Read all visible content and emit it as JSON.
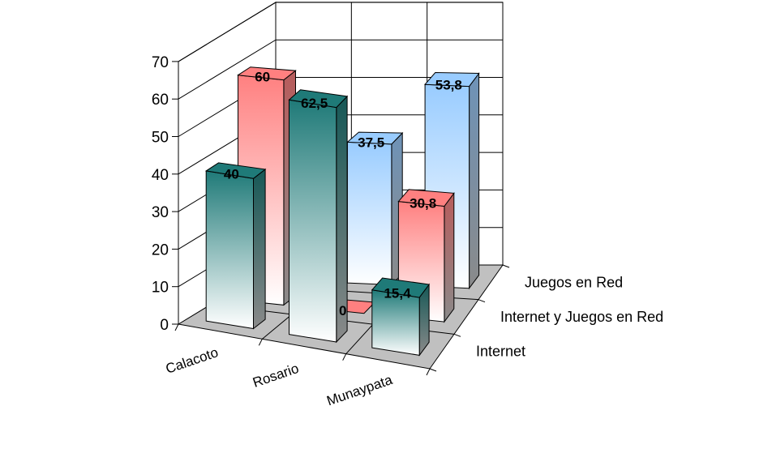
{
  "chart_data": {
    "type": "bar",
    "title": "",
    "xlabel": "",
    "ylabel": "",
    "ylim": [
      0,
      70
    ],
    "yticks": [
      0,
      10,
      20,
      30,
      40,
      50,
      60,
      70
    ],
    "categories": [
      "Calacoto",
      "Rosario",
      "Munaypata"
    ],
    "series": [
      {
        "name": "Internet",
        "values": [
          40,
          62.5,
          15.4
        ],
        "data_labels": [
          "40",
          "62,5",
          "15,4"
        ],
        "color": "#1f7a78"
      },
      {
        "name": "Internet y Juegos en Red",
        "values": [
          60,
          0,
          30.8
        ],
        "data_labels": [
          "60",
          "0",
          "30,8"
        ],
        "color": "#ff8080"
      },
      {
        "name": "Juegos en Red",
        "values": [
          null,
          37.5,
          53.8
        ],
        "data_labels": [
          "",
          "37,5",
          "53,8"
        ],
        "color": "#99ccff"
      }
    ],
    "grid": true,
    "projection": "3d-column"
  }
}
